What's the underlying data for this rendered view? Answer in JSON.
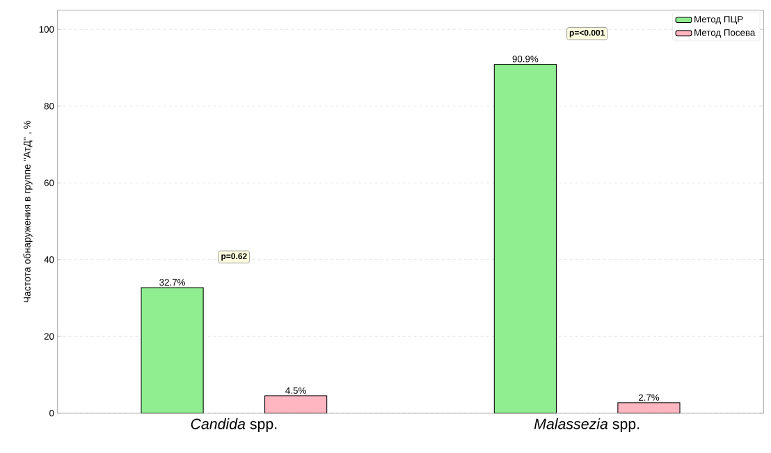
{
  "chart_data": {
    "type": "bar",
    "ylabel": "Частота обнаружения в группе \"АтД\" , %",
    "categories": [
      "*Candida* spp.",
      "*Malassezia* spp."
    ],
    "series": [
      {
        "name": "Метод ПЦР",
        "color": "#90ee90",
        "values": [
          32.7,
          90.9
        ],
        "value_labels": [
          "32.7%",
          "90.9%"
        ]
      },
      {
        "name": "Метод Посева",
        "color": "#ffb6c1",
        "values": [
          4.5,
          2.7
        ],
        "value_labels": [
          "4.5%",
          "2.7%"
        ]
      }
    ],
    "annotations": [
      "p=0.62",
      "p=<0.001"
    ],
    "ylim": [
      0,
      105
    ],
    "yticks": [
      0,
      20,
      40,
      60,
      80,
      100
    ],
    "grid": "y",
    "legend": "top right"
  }
}
